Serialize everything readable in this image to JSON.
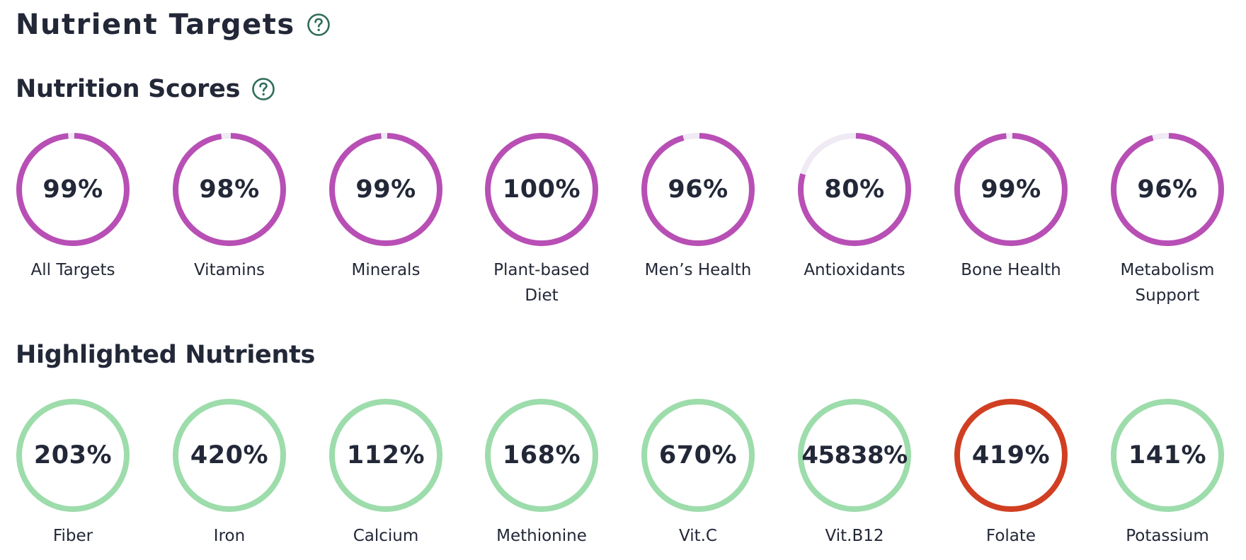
{
  "page": {
    "title": "Nutrient Targets",
    "help_icon": "question-circle-icon"
  },
  "scores": {
    "title": "Nutrition Scores",
    "help_icon": "question-circle-icon",
    "ring_color": "#b84fb5",
    "track_color": "#efeaf4",
    "items": [
      {
        "label": "All Targets",
        "percent_text": "99%",
        "percent": 99
      },
      {
        "label": "Vitamins",
        "percent_text": "98%",
        "percent": 98
      },
      {
        "label": "Minerals",
        "percent_text": "99%",
        "percent": 99
      },
      {
        "label": "Plant-based Diet",
        "percent_text": "100%",
        "percent": 100
      },
      {
        "label": "Men’s Health",
        "percent_text": "96%",
        "percent": 96
      },
      {
        "label": "Antioxidants",
        "percent_text": "80%",
        "percent": 80
      },
      {
        "label": "Bone Health",
        "percent_text": "99%",
        "percent": 99
      },
      {
        "label": "Metabolism Support",
        "percent_text": "96%",
        "percent": 96
      }
    ]
  },
  "highlighted": {
    "title": "Highlighted Nutrients",
    "good_color": "#9ddcab",
    "warn_color": "#d13f22",
    "items": [
      {
        "label": "Fiber",
        "percent_text": "203%",
        "percent": 203,
        "status": "good"
      },
      {
        "label": "Iron",
        "percent_text": "420%",
        "percent": 420,
        "status": "good"
      },
      {
        "label": "Calcium",
        "percent_text": "112%",
        "percent": 112,
        "status": "good"
      },
      {
        "label": "Methionine",
        "percent_text": "168%",
        "percent": 168,
        "status": "good"
      },
      {
        "label": "Vit.C",
        "percent_text": "670%",
        "percent": 670,
        "status": "good"
      },
      {
        "label": "Vit.B12",
        "percent_text": "45838%",
        "percent": 45838,
        "status": "good"
      },
      {
        "label": "Folate",
        "percent_text": "419%",
        "percent": 419,
        "status": "warn"
      },
      {
        "label": "Potassium",
        "percent_text": "141%",
        "percent": 141,
        "status": "good"
      }
    ]
  }
}
